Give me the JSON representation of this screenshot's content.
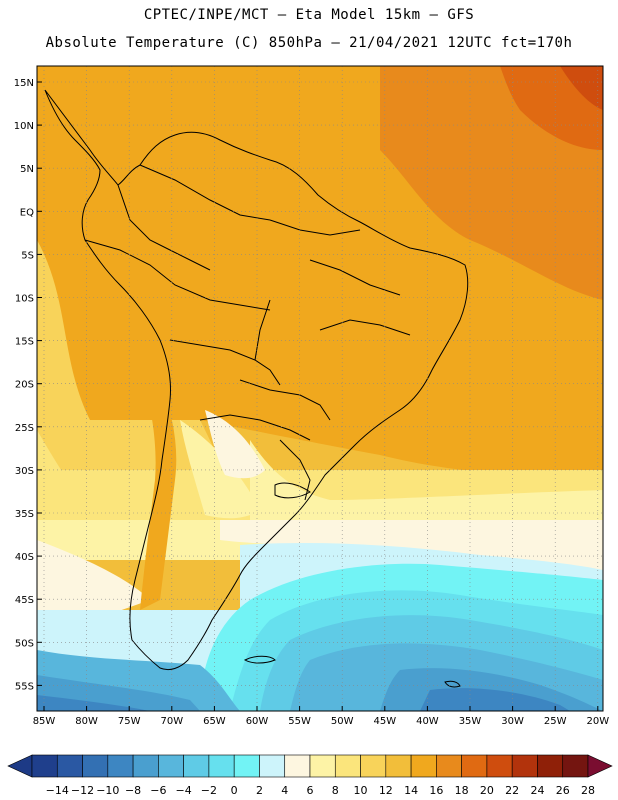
{
  "title_line1": "CPTEC/INPE/MCT –  Eta Model 15km – GFS",
  "title_line2": "Absolute Temperature (C) 850hPa – 21/04/2021 12UTC fct=170h",
  "lat_labels": [
    "15N",
    "10N",
    "5N",
    "EQ",
    "5S",
    "10S",
    "15S",
    "20S",
    "25S",
    "30S",
    "35S",
    "40S",
    "45S",
    "50S",
    "55S"
  ],
  "lon_labels": [
    "85W",
    "80W",
    "75W",
    "70W",
    "65W",
    "60W",
    "55W",
    "50W",
    "45W",
    "40W",
    "35W",
    "30W",
    "25W",
    "20W"
  ],
  "colorbar": {
    "labels": [
      "-14",
      "-12",
      "-10",
      "-8",
      "-6",
      "-4",
      "-2",
      "0",
      "2",
      "4",
      "6",
      "8",
      "10",
      "12",
      "14",
      "16",
      "18",
      "20",
      "22",
      "24",
      "26",
      "28"
    ],
    "colors": [
      "#1f3f8c",
      "#2a58a3",
      "#3370b3",
      "#3d86c2",
      "#4a9fcf",
      "#58b6dc",
      "#5fcbe6",
      "#66e0ee",
      "#72f3f5",
      "#cdf4fb",
      "#fdf6e0",
      "#fdf3a6",
      "#fbe57c",
      "#f8d35a",
      "#f2be3a",
      "#f0a81e",
      "#e88a1c",
      "#e06a12",
      "#cf4d0e",
      "#b2330c",
      "#8f2008",
      "#741510"
    ],
    "left_arrow": "#1d3a86",
    "right_arrow": "#7a0d30"
  }
}
